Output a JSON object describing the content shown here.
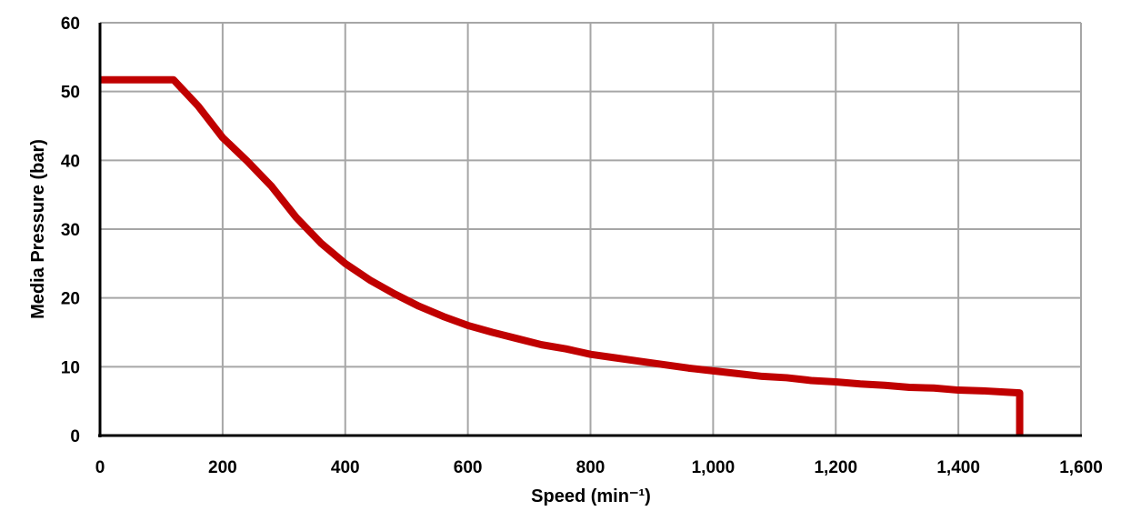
{
  "chart_data": {
    "type": "line",
    "title": "",
    "xlabel": "Speed (min⁻¹)",
    "ylabel": "Media Pressure (bar)",
    "xlim": [
      0,
      1600
    ],
    "ylim": [
      0,
      60
    ],
    "xticks": [
      "0",
      "200",
      "400",
      "600",
      "800",
      "1,000",
      "1,200",
      "1,400",
      "1,600"
    ],
    "xtick_values": [
      0,
      200,
      400,
      600,
      800,
      1000,
      1200,
      1400,
      1600
    ],
    "yticks": [
      "0",
      "10",
      "20",
      "30",
      "40",
      "50",
      "60"
    ],
    "ytick_values": [
      0,
      10,
      20,
      30,
      40,
      50,
      60
    ],
    "grid": true,
    "legend": "none",
    "series": [
      {
        "color": "#c00000",
        "x": [
          0,
          120,
          160,
          200,
          240,
          280,
          320,
          360,
          400,
          440,
          480,
          520,
          560,
          600,
          640,
          680,
          720,
          760,
          800,
          840,
          880,
          920,
          960,
          1000,
          1040,
          1080,
          1120,
          1160,
          1200,
          1240,
          1280,
          1320,
          1360,
          1400,
          1440,
          1480,
          1500,
          1500
        ],
        "y": [
          51.7,
          51.7,
          47.9,
          43.3,
          39.9,
          36.2,
          31.7,
          28.0,
          25.0,
          22.6,
          20.6,
          18.8,
          17.3,
          16.0,
          15.0,
          14.1,
          13.2,
          12.6,
          11.8,
          11.3,
          10.8,
          10.3,
          9.8,
          9.4,
          9.0,
          8.6,
          8.4,
          8.0,
          7.8,
          7.5,
          7.3,
          7.0,
          6.9,
          6.6,
          6.5,
          6.3,
          6.2,
          0
        ]
      }
    ]
  }
}
